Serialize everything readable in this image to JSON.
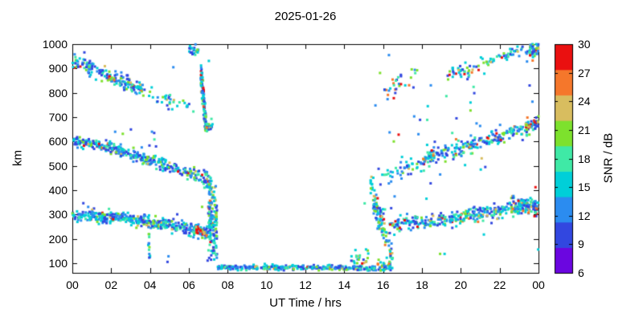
{
  "title": "2025-01-26",
  "axes": {
    "x": {
      "label": "UT Time / hrs",
      "min": 0,
      "max": 24,
      "ticks": [
        {
          "v": 0,
          "label": "00"
        },
        {
          "v": 2,
          "label": "02"
        },
        {
          "v": 4,
          "label": "04"
        },
        {
          "v": 6,
          "label": "06"
        },
        {
          "v": 8,
          "label": "08"
        },
        {
          "v": 10,
          "label": "10"
        },
        {
          "v": 12,
          "label": "12"
        },
        {
          "v": 14,
          "label": "14"
        },
        {
          "v": 16,
          "label": "16"
        },
        {
          "v": 18,
          "label": "18"
        },
        {
          "v": 20,
          "label": "20"
        },
        {
          "v": 22,
          "label": "22"
        },
        {
          "v": 24,
          "label": "00"
        }
      ]
    },
    "y": {
      "label": "km",
      "min": 60,
      "max": 1000,
      "ticks": [
        100,
        200,
        300,
        400,
        500,
        600,
        700,
        800,
        900,
        1000
      ]
    }
  },
  "colorbar": {
    "label": "SNR / dB",
    "min": 6,
    "max": 30,
    "ticks": [
      6,
      9,
      12,
      15,
      18,
      21,
      24,
      27,
      30
    ],
    "palette": [
      "#6b06e0",
      "#3247e0",
      "#2b8cf0",
      "#00cfd8",
      "#3fe9a6",
      "#7de12d",
      "#d8bd5f",
      "#f5772b",
      "#ea1010"
    ]
  },
  "chart_data": {
    "type": "scatter",
    "title": "2025-01-26",
    "xlabel": "UT Time / hrs",
    "ylabel": "km",
    "colorbar_label": "SNR / dB",
    "xlim": [
      0,
      24
    ],
    "ylim": [
      60,
      1000
    ],
    "snr_range": [
      6,
      30
    ],
    "marker_px": 3,
    "seed": 42,
    "bands": [
      {
        "name": "morning-trace-300km",
        "poly": [
          [
            0,
            298
          ],
          [
            0.8,
            301
          ],
          [
            1.6,
            288
          ],
          [
            2.4,
            291
          ],
          [
            3.2,
            276
          ],
          [
            4.0,
            268
          ],
          [
            4.8,
            258
          ],
          [
            5.6,
            247
          ],
          [
            6.4,
            234
          ],
          [
            7.0,
            220
          ]
        ],
        "n": 420,
        "jitter": 13,
        "weights": [
          1,
          28,
          22,
          24,
          11,
          8,
          2,
          1,
          1
        ]
      },
      {
        "name": "red-patch-0630-230km",
        "poly": [
          [
            6.35,
            238
          ],
          [
            6.7,
            228
          ],
          [
            6.95,
            218
          ]
        ],
        "n": 24,
        "jitter": 6,
        "weights": [
          0,
          0,
          0,
          1,
          1,
          3,
          5,
          14,
          18
        ]
      },
      {
        "name": "dropout-0700-spread",
        "poly": [
          [
            7.0,
            280
          ],
          [
            7.45,
            260
          ]
        ],
        "n": 150,
        "jitter": 85,
        "amin": 112,
        "amax": 428,
        "weights": [
          0,
          22,
          20,
          26,
          14,
          10,
          4,
          2,
          2
        ]
      },
      {
        "name": "daytime-baseline-80km",
        "poly": [
          [
            7.45,
            82
          ],
          [
            15.6,
            80
          ]
        ],
        "n": 310,
        "jitter": 5,
        "amin": 68,
        "amax": 104,
        "weights": [
          0,
          26,
          26,
          24,
          12,
          8,
          2,
          1,
          1
        ]
      },
      {
        "name": "baseline-tail-1600",
        "poly": [
          [
            15.6,
            86
          ],
          [
            16.5,
            92
          ]
        ],
        "n": 35,
        "jitter": 12,
        "amin": 68,
        "weights": [
          0,
          16,
          18,
          22,
          16,
          16,
          7,
          3,
          2
        ]
      },
      {
        "name": "morning-trace-600km",
        "poly": [
          [
            0,
            602
          ],
          [
            1,
            592
          ],
          [
            2,
            570
          ],
          [
            3,
            548
          ],
          [
            4,
            522
          ],
          [
            5,
            500
          ],
          [
            5.8,
            478
          ],
          [
            6.7,
            450
          ]
        ],
        "n": 330,
        "jitter": 13,
        "weights": [
          1,
          30,
          22,
          24,
          10,
          8,
          2,
          1,
          2
        ]
      },
      {
        "name": "trace-600km-drop",
        "poly": [
          [
            6.75,
            446
          ],
          [
            7.2,
            418
          ]
        ],
        "n": 40,
        "jitter": 16,
        "weights": [
          0,
          26,
          22,
          24,
          12,
          8,
          4,
          2,
          2
        ]
      },
      {
        "name": "morning-trace-900km",
        "poly": [
          [
            0,
            922
          ],
          [
            0.6,
            908
          ],
          [
            1.2,
            892
          ],
          [
            1.8,
            872
          ],
          [
            2.4,
            855
          ],
          [
            3.0,
            832
          ],
          [
            3.6,
            812
          ]
        ],
        "n": 165,
        "jitter": 16,
        "weights": [
          0,
          26,
          20,
          24,
          12,
          10,
          3,
          2,
          3
        ]
      },
      {
        "name": "trace-900km-sparse",
        "poly": [
          [
            3.6,
            800
          ],
          [
            4.5,
            776
          ],
          [
            5.5,
            753
          ],
          [
            6.3,
            740
          ]
        ],
        "n": 34,
        "jitter": 14,
        "weights": [
          0,
          24,
          22,
          26,
          12,
          10,
          3,
          1,
          2
        ]
      },
      {
        "name": "hook-vertical-0645",
        "poly": [
          [
            6.62,
            878
          ],
          [
            6.75,
            770
          ],
          [
            6.88,
            662
          ]
        ],
        "n": 115,
        "jitter": 26,
        "weights": [
          0,
          24,
          20,
          24,
          12,
          10,
          4,
          2,
          4
        ]
      },
      {
        "name": "hook-bottom-0700",
        "poly": [
          [
            6.9,
            660
          ],
          [
            7.25,
            655
          ]
        ],
        "n": 26,
        "jitter": 10,
        "weights": [
          0,
          22,
          20,
          26,
          12,
          12,
          4,
          2,
          2
        ]
      },
      {
        "name": "top-cluster-0600",
        "poly": [
          [
            6.0,
            980
          ],
          [
            6.5,
            968
          ]
        ],
        "n": 24,
        "jitter": 15,
        "amax": 1000,
        "weights": [
          0,
          22,
          20,
          26,
          14,
          12,
          3,
          1,
          2
        ]
      },
      {
        "name": "sparse-scatter-left",
        "poly": [
          [
            0.2,
            560
          ],
          [
            7.2,
            560
          ]
        ],
        "n": 16,
        "jitter": 290,
        "amin": 95,
        "amax": 1000,
        "weights": [
          0,
          26,
          22,
          26,
          12,
          10,
          2,
          1,
          1
        ]
      },
      {
        "name": "vertical-0355-low",
        "poly": [
          [
            3.9,
            235
          ],
          [
            4.0,
            130
          ]
        ],
        "n": 13,
        "jitter": 20,
        "weights": [
          0,
          26,
          24,
          26,
          12,
          8,
          2,
          1,
          1
        ]
      },
      {
        "name": "evening-onset-1530",
        "poly": [
          [
            15.35,
            425
          ],
          [
            15.55,
            345
          ],
          [
            15.8,
            290
          ],
          [
            16.1,
            252
          ]
        ],
        "n": 90,
        "jitter": 28,
        "weights": [
          0,
          22,
          18,
          24,
          14,
          12,
          5,
          2,
          3
        ]
      },
      {
        "name": "evening-onset-low",
        "poly": [
          [
            16.1,
            195
          ],
          [
            16.5,
            115
          ]
        ],
        "n": 20,
        "jitter": 26,
        "amin": 75,
        "weights": [
          0,
          20,
          18,
          24,
          14,
          14,
          6,
          2,
          2
        ]
      },
      {
        "name": "green-patch-1445-120km",
        "poly": [
          [
            14.35,
            108
          ],
          [
            14.9,
            118
          ],
          [
            15.35,
            138
          ]
        ],
        "n": 24,
        "jitter": 20,
        "amin": 72,
        "weights": [
          0,
          12,
          14,
          18,
          18,
          20,
          10,
          4,
          4
        ]
      },
      {
        "name": "evening-trace-300km",
        "poly": [
          [
            16.2,
            252
          ],
          [
            17,
            262
          ],
          [
            18,
            268
          ],
          [
            19,
            278
          ],
          [
            20,
            288
          ],
          [
            21,
            302
          ],
          [
            22,
            318
          ],
          [
            22.8,
            331
          ],
          [
            23.5,
            338
          ],
          [
            24,
            331
          ]
        ],
        "n": 340,
        "jitter": 14,
        "weights": [
          0,
          24,
          20,
          24,
          12,
          10,
          5,
          2,
          3
        ]
      },
      {
        "name": "evening-blob-2330-330km",
        "poly": [
          [
            22.6,
            328
          ],
          [
            23.3,
            336
          ],
          [
            23.95,
            330
          ]
        ],
        "n": 85,
        "jitter": 18,
        "weights": [
          0,
          18,
          16,
          20,
          14,
          12,
          12,
          4,
          4
        ]
      },
      {
        "name": "evening-trace-600km-sparse",
        "poly": [
          [
            15.9,
            452
          ],
          [
            16.6,
            470
          ],
          [
            17.3,
            488
          ],
          [
            18.0,
            506
          ]
        ],
        "n": 42,
        "jitter": 16,
        "weights": [
          0,
          24,
          20,
          24,
          12,
          10,
          4,
          3,
          3
        ]
      },
      {
        "name": "evening-trace-600km",
        "poly": [
          [
            18.0,
            520
          ],
          [
            19,
            553
          ],
          [
            20,
            575
          ],
          [
            21,
            598
          ],
          [
            22,
            622
          ],
          [
            23,
            648
          ],
          [
            24,
            672
          ]
        ],
        "n": 230,
        "jitter": 16,
        "weights": [
          0,
          24,
          20,
          22,
          12,
          10,
          5,
          3,
          4
        ]
      },
      {
        "name": "evening-blob-2345-670km",
        "poly": [
          [
            23.3,
            658
          ],
          [
            23.7,
            670
          ],
          [
            24,
            678
          ]
        ],
        "n": 38,
        "jitter": 12,
        "weights": [
          0,
          10,
          10,
          14,
          10,
          10,
          14,
          16,
          16
        ]
      },
      {
        "name": "evening-trace-900km-sparse",
        "poly": [
          [
            16.0,
            805
          ],
          [
            16.6,
            832
          ],
          [
            17.2,
            858
          ],
          [
            17.75,
            880
          ]
        ],
        "n": 28,
        "jitter": 18,
        "weights": [
          0,
          20,
          16,
          20,
          14,
          14,
          6,
          4,
          6
        ]
      },
      {
        "name": "evening-trace-900km",
        "poly": [
          [
            19.3,
            872
          ],
          [
            20.2,
            894
          ],
          [
            21,
            915
          ],
          [
            22,
            940
          ],
          [
            22.8,
            958
          ],
          [
            23.5,
            974
          ],
          [
            24,
            986
          ]
        ],
        "n": 105,
        "jitter": 16,
        "amax": 1000,
        "weights": [
          0,
          24,
          18,
          22,
          12,
          10,
          5,
          3,
          5
        ]
      },
      {
        "name": "blob-top-right",
        "poly": [
          [
            23.5,
            975
          ],
          [
            24,
            985
          ]
        ],
        "n": 32,
        "jitter": 14,
        "amax": 1000,
        "weights": [
          0,
          22,
          18,
          24,
          12,
          10,
          5,
          3,
          5
        ]
      },
      {
        "name": "sparse-scatter-right",
        "poly": [
          [
            15.0,
            560
          ],
          [
            24,
            560
          ]
        ],
        "n": 55,
        "jitter": 300,
        "amin": 95,
        "amax": 1000,
        "weights": [
          0,
          26,
          22,
          24,
          12,
          10,
          3,
          1,
          2
        ]
      }
    ],
    "points": [
      {
        "t": 1.92,
        "alt": 868,
        "snr": 29
      },
      {
        "t": 2.15,
        "alt": 852,
        "snr": 26
      },
      {
        "t": 0.12,
        "alt": 958,
        "snr": 12
      },
      {
        "t": 0.38,
        "alt": 941,
        "snr": 15
      },
      {
        "t": 0.62,
        "alt": 966,
        "snr": 10
      },
      {
        "t": 4.95,
        "alt": 128,
        "snr": 12
      },
      {
        "t": 4.9,
        "alt": 105,
        "snr": 9
      },
      {
        "t": 16.8,
        "alt": 628,
        "snr": 28
      },
      {
        "t": 16.55,
        "alt": 600,
        "snr": 21
      },
      {
        "t": 16.3,
        "alt": 955,
        "snr": 12
      },
      {
        "t": 20.5,
        "alt": 760,
        "snr": 14
      },
      {
        "t": 4.1,
        "alt": 640,
        "snr": 12
      },
      {
        "t": 5.2,
        "alt": 905,
        "snr": 12
      },
      {
        "t": 17.6,
        "alt": 703,
        "snr": 12
      },
      {
        "t": 18.3,
        "alt": 745,
        "snr": 15
      }
    ]
  }
}
